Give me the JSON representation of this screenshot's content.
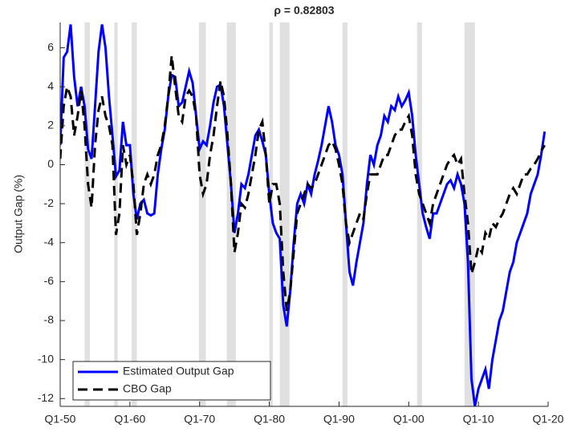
{
  "chart_data": {
    "type": "line",
    "title": "ρ = 0.82803",
    "y_label": "Output Gap (%)",
    "x": [
      1950,
      1950.5,
      1951,
      1951.5,
      1952,
      1952.5,
      1953,
      1953.5,
      1954,
      1954.5,
      1955,
      1955.5,
      1956,
      1956.5,
      1957,
      1957.5,
      1958,
      1958.5,
      1959,
      1959.5,
      1960,
      1960.5,
      1961,
      1961.5,
      1962,
      1962.5,
      1963,
      1963.5,
      1964,
      1964.5,
      1965,
      1965.5,
      1966,
      1966.5,
      1967,
      1967.5,
      1968,
      1968.5,
      1969,
      1969.5,
      1970,
      1970.5,
      1971,
      1971.5,
      1972,
      1972.5,
      1973,
      1973.5,
      1974,
      1974.5,
      1975,
      1975.5,
      1976,
      1976.5,
      1977,
      1977.5,
      1978,
      1978.5,
      1979,
      1979.5,
      1980,
      1980.5,
      1981,
      1981.5,
      1982,
      1982.5,
      1983,
      1983.5,
      1984,
      1984.5,
      1985,
      1985.5,
      1986,
      1986.5,
      1987,
      1987.5,
      1988,
      1988.5,
      1989,
      1989.5,
      1990,
      1990.5,
      1991,
      1991.5,
      1992,
      1992.5,
      1993,
      1993.5,
      1994,
      1994.5,
      1995,
      1995.5,
      1996,
      1996.5,
      1997,
      1997.5,
      1998,
      1998.5,
      1999,
      1999.5,
      2000,
      2000.5,
      2001,
      2001.5,
      2002,
      2002.5,
      2003,
      2003.5,
      2004,
      2004.5,
      2005,
      2005.5,
      2006,
      2006.5,
      2007,
      2007.5,
      2008,
      2008.5,
      2009,
      2009.5,
      2010,
      2010.5,
      2011,
      2011.5,
      2012,
      2012.5,
      2013,
      2013.5,
      2014,
      2014.5,
      2015,
      2015.5,
      2016,
      2016.5,
      2017,
      2017.5,
      2018,
      2018.5,
      2019,
      2019.5
    ],
    "series": [
      {
        "name": "Estimated Output Gap",
        "color": "#0000ff",
        "dash": "solid",
        "values": [
          1.0,
          5.5,
          5.8,
          7.2,
          4.5,
          3.0,
          4.0,
          3.0,
          0.8,
          0.3,
          3.0,
          5.8,
          7.2,
          6.0,
          3.5,
          1.5,
          -0.6,
          -0.3,
          2.2,
          1.0,
          1.0,
          -1.5,
          -2.8,
          -2.0,
          -1.8,
          -2.5,
          -2.6,
          -2.5,
          -0.5,
          0.8,
          1.8,
          3.5,
          4.6,
          4.5,
          3.0,
          3.2,
          4.0,
          4.8,
          4.2,
          2.5,
          0.8,
          1.2,
          1.0,
          2.0,
          3.2,
          4.0,
          4.1,
          3.0,
          1.0,
          -1.0,
          -3.5,
          -2.5,
          -1.0,
          -1.2,
          -0.5,
          0.5,
          1.5,
          1.8,
          1.2,
          0.5,
          -1.5,
          -3.0,
          -3.5,
          -3.8,
          -7.2,
          -8.3,
          -6.5,
          -4.0,
          -2.0,
          -1.5,
          -2.0,
          -1.0,
          -1.5,
          -0.5,
          0.2,
          1.0,
          2.0,
          3.0,
          2.2,
          1.0,
          0.5,
          -0.5,
          -3.0,
          -5.5,
          -6.2,
          -5.0,
          -4.0,
          -3.0,
          -1.0,
          0.5,
          0.0,
          1.0,
          1.5,
          2.5,
          2.2,
          3.0,
          2.8,
          3.5,
          3.0,
          3.3,
          3.7,
          2.5,
          0.5,
          -1.0,
          -2.5,
          -3.2,
          -3.8,
          -2.5,
          -2.5,
          -2.0,
          -1.5,
          -1.0,
          -0.8,
          -1.2,
          -0.5,
          -1.0,
          -2.0,
          -5.0,
          -11.0,
          -12.4,
          -11.5,
          -11.0,
          -10.5,
          -11.5,
          -10.0,
          -9.0,
          -8.0,
          -7.5,
          -6.5,
          -5.5,
          -5.0,
          -4.0,
          -3.5,
          -3.0,
          -2.5,
          -1.5,
          -1.0,
          -0.5,
          0.5,
          1.7
        ]
      },
      {
        "name": "CBO Gap",
        "color": "#000000",
        "dash": "dashed",
        "values": [
          0.3,
          3.0,
          4.0,
          3.5,
          1.5,
          2.5,
          3.8,
          2.0,
          -1.0,
          -2.2,
          1.0,
          2.8,
          3.5,
          2.5,
          2.0,
          1.0,
          -3.6,
          -2.5,
          1.0,
          0.0,
          0.5,
          -1.0,
          -3.6,
          -2.5,
          -1.0,
          -0.5,
          -1.0,
          -0.5,
          0.5,
          1.0,
          2.0,
          3.5,
          5.6,
          4.0,
          2.5,
          2.2,
          3.5,
          3.8,
          3.5,
          2.5,
          -0.5,
          -1.5,
          -1.0,
          0.5,
          1.5,
          3.0,
          4.3,
          3.5,
          1.5,
          -1.0,
          -4.5,
          -3.5,
          -2.0,
          -2.2,
          -1.5,
          -0.5,
          0.5,
          1.8,
          2.2,
          0.5,
          -2.0,
          -1.0,
          -1.0,
          -2.0,
          -5.5,
          -7.5,
          -6.5,
          -4.5,
          -2.5,
          -2.0,
          -1.5,
          -1.0,
          -1.2,
          -1.0,
          -0.5,
          0.0,
          0.5,
          1.0,
          1.2,
          0.8,
          0.0,
          -1.0,
          -3.0,
          -4.0,
          -3.5,
          -3.0,
          -2.5,
          -2.8,
          -1.5,
          -0.5,
          -0.5,
          -0.5,
          0.0,
          0.5,
          0.5,
          1.0,
          1.5,
          1.8,
          1.8,
          2.2,
          2.5,
          1.5,
          -0.5,
          -1.5,
          -2.0,
          -2.5,
          -3.0,
          -2.0,
          -1.5,
          -1.0,
          -0.5,
          0.0,
          0.3,
          0.5,
          0.0,
          0.3,
          -1.5,
          -3.0,
          -5.6,
          -5.0,
          -4.2,
          -4.5,
          -3.5,
          -3.8,
          -3.0,
          -3.2,
          -2.8,
          -2.5,
          -2.0,
          -1.5,
          -1.2,
          -1.5,
          -1.0,
          -0.5,
          -0.5,
          -0.2,
          0.0,
          0.3,
          0.7,
          1.0
        ]
      }
    ],
    "shaded_periods": [
      [
        1953.5,
        1954.25
      ],
      [
        1957.75,
        1958.25
      ],
      [
        1960.25,
        1961
      ],
      [
        1969.9,
        1970.9
      ],
      [
        1973.9,
        1975.2
      ],
      [
        1980,
        1980.5
      ],
      [
        1981.5,
        1982.9
      ],
      [
        1990.5,
        1991.2
      ],
      [
        2001.2,
        2001.9
      ],
      [
        2008,
        2009.5
      ]
    ],
    "shade_color": "#e0e0e0",
    "xlim": [
      1950,
      2020
    ],
    "xticks": [
      {
        "value": 1950,
        "label": "Q1-50"
      },
      {
        "value": 1960,
        "label": "Q1-60"
      },
      {
        "value": 1970,
        "label": "Q1-70"
      },
      {
        "value": 1980,
        "label": "Q1-80"
      },
      {
        "value": 1990,
        "label": "Q1-90"
      },
      {
        "value": 2000,
        "label": "Q1-00"
      },
      {
        "value": 2010,
        "label": "Q1-10"
      },
      {
        "value": 2020,
        "label": "Q1-20"
      }
    ],
    "ylim": [
      -12.4,
      7.3
    ],
    "yticks": [
      -12,
      -10,
      -8,
      -6,
      -4,
      -2,
      0,
      2,
      4,
      6
    ],
    "legend": "lower left"
  }
}
